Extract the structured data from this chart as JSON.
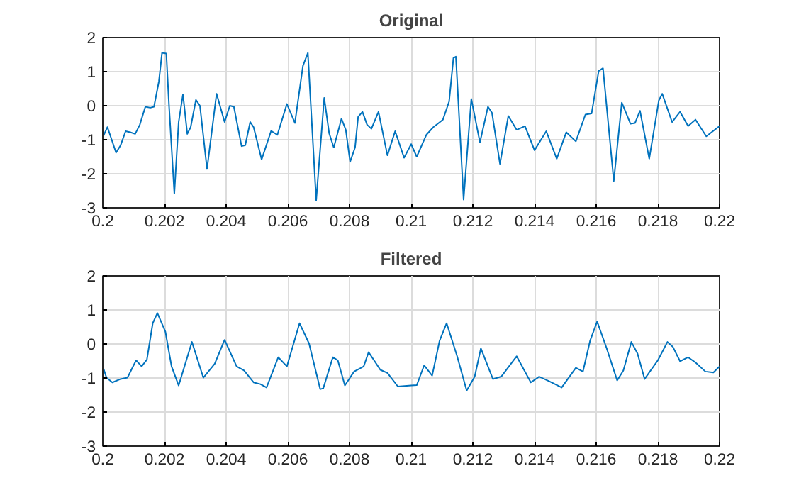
{
  "chart_data": [
    {
      "type": "line",
      "title": "Original",
      "xlim": [
        0.2,
        0.22
      ],
      "ylim": [
        -3,
        2
      ],
      "xticks": [
        0.2,
        0.202,
        0.204,
        0.206,
        0.208,
        0.21,
        0.212,
        0.214,
        0.216,
        0.218,
        0.22
      ],
      "yticks": [
        -3,
        -2,
        -1,
        0,
        1,
        2
      ],
      "grid": true,
      "series": [
        {
          "color": "#0072bd",
          "x": [
            0.2,
            0.20015,
            0.20043,
            0.20058,
            0.20074,
            0.20089,
            0.20105,
            0.2012,
            0.20138,
            0.20154,
            0.20166,
            0.20182,
            0.20192,
            0.20206,
            0.20215,
            0.20232,
            0.20246,
            0.2026,
            0.20274,
            0.20285,
            0.20302,
            0.20315,
            0.20338,
            0.20369,
            0.20395,
            0.20412,
            0.20425,
            0.2045,
            0.20462,
            0.20478,
            0.20489,
            0.20515,
            0.20546,
            0.20566,
            0.20597,
            0.20623,
            0.20649,
            0.20665,
            0.20692,
            0.20718,
            0.20734,
            0.20749,
            0.20774,
            0.20788,
            0.20802,
            0.20818,
            0.20828,
            0.20842,
            0.20857,
            0.20871,
            0.20894,
            0.20923,
            0.20948,
            0.20977,
            0.21,
            0.21018,
            0.21049,
            0.21072,
            0.21103,
            0.21123,
            0.21137,
            0.21145,
            0.2117,
            0.21195,
            0.21223,
            0.21249,
            0.21262,
            0.21288,
            0.21315,
            0.21342,
            0.21369,
            0.214,
            0.21438,
            0.21472,
            0.21503,
            0.21534,
            0.21565,
            0.21585,
            0.21608,
            0.21622,
            0.21657,
            0.21683,
            0.21711,
            0.21726,
            0.21742,
            0.21772,
            0.21803,
            0.21814,
            0.21846,
            0.21872,
            0.21898,
            0.21922,
            0.21957,
            0.22
          ],
          "values": [
            -0.93,
            -0.63,
            -1.38,
            -1.16,
            -0.75,
            -0.78,
            -0.83,
            -0.56,
            -0.03,
            -0.06,
            -0.03,
            0.72,
            1.55,
            1.53,
            -0.03,
            -2.58,
            -0.48,
            0.33,
            -0.83,
            -0.63,
            0.17,
            0,
            -1.86,
            0.35,
            -0.48,
            0,
            -0.03,
            -1.19,
            -1.16,
            -0.48,
            -0.63,
            -1.58,
            -0.74,
            -0.86,
            0.05,
            -0.51,
            1.17,
            1.55,
            -2.78,
            0.23,
            -0.81,
            -1.23,
            -0.38,
            -0.71,
            -1.65,
            -1.23,
            -0.33,
            -0.18,
            -0.56,
            -0.68,
            -0.18,
            -1.46,
            -0.75,
            -1.53,
            -1.13,
            -1.5,
            -0.86,
            -0.63,
            -0.41,
            0.12,
            1.4,
            1.44,
            -2.76,
            0.2,
            -1.08,
            -0.03,
            -0.21,
            -1.71,
            -0.3,
            -0.71,
            -0.6,
            -1.31,
            -0.75,
            -1.56,
            -0.78,
            -1.05,
            -0.26,
            -0.23,
            1.02,
            1.1,
            -2.21,
            0.09,
            -0.53,
            -0.51,
            -0.15,
            -1.56,
            0.15,
            0.35,
            -0.48,
            -0.18,
            -0.6,
            -0.41,
            -0.9,
            -0.6
          ]
        }
      ]
    },
    {
      "type": "line",
      "title": "Filtered",
      "xlim": [
        0.2,
        0.22
      ],
      "ylim": [
        -3,
        2
      ],
      "xticks": [
        0.2,
        0.202,
        0.204,
        0.206,
        0.208,
        0.21,
        0.212,
        0.214,
        0.216,
        0.218,
        0.22
      ],
      "yticks": [
        -3,
        -2,
        -1,
        0,
        1,
        2
      ],
      "grid": true,
      "series": [
        {
          "color": "#0072bd",
          "x": [
            0.2,
            0.20012,
            0.20031,
            0.20058,
            0.2008,
            0.20108,
            0.20126,
            0.20143,
            0.20162,
            0.20177,
            0.20203,
            0.20223,
            0.20246,
            0.20289,
            0.20326,
            0.20363,
            0.20395,
            0.20434,
            0.20458,
            0.20489,
            0.20511,
            0.20531,
            0.20569,
            0.20597,
            0.20638,
            0.20669,
            0.20705,
            0.20715,
            0.20746,
            0.20762,
            0.20785,
            0.20815,
            0.20846,
            0.20862,
            0.209,
            0.20923,
            0.20957,
            0.21,
            0.21018,
            0.21042,
            0.21068,
            0.21092,
            0.21115,
            0.21149,
            0.2118,
            0.21206,
            0.21226,
            0.21265,
            0.21292,
            0.21342,
            0.21388,
            0.21415,
            0.21449,
            0.21488,
            0.21534,
            0.21557,
            0.2158,
            0.21603,
            0.21634,
            0.21668,
            0.21688,
            0.21714,
            0.21734,
            0.21757,
            0.218,
            0.21831,
            0.21849,
            0.21872,
            0.21898,
            0.21923,
            0.21954,
            0.2198,
            0.22
          ],
          "values": [
            -0.66,
            -0.99,
            -1.13,
            -1.03,
            -0.99,
            -0.48,
            -0.66,
            -0.46,
            0.61,
            0.91,
            0.36,
            -0.66,
            -1.22,
            0.06,
            -0.99,
            -0.58,
            0.12,
            -0.66,
            -0.78,
            -1.13,
            -1.18,
            -1.28,
            -0.39,
            -0.66,
            0.61,
            0.01,
            -1.33,
            -1.3,
            -0.39,
            -0.48,
            -1.22,
            -0.81,
            -0.66,
            -0.24,
            -0.76,
            -0.85,
            -1.25,
            -1.22,
            -1.21,
            -0.63,
            -0.93,
            0.09,
            0.61,
            -0.36,
            -1.37,
            -0.96,
            -0.13,
            -1.03,
            -0.96,
            -0.36,
            -1.13,
            -0.96,
            -1.1,
            -1.28,
            -0.7,
            -0.81,
            0.09,
            0.66,
            -0.13,
            -1.07,
            -0.78,
            0.06,
            -0.28,
            -1.03,
            -0.48,
            0.06,
            -0.09,
            -0.51,
            -0.39,
            -0.55,
            -0.81,
            -0.84,
            -0.66
          ]
        }
      ]
    }
  ]
}
